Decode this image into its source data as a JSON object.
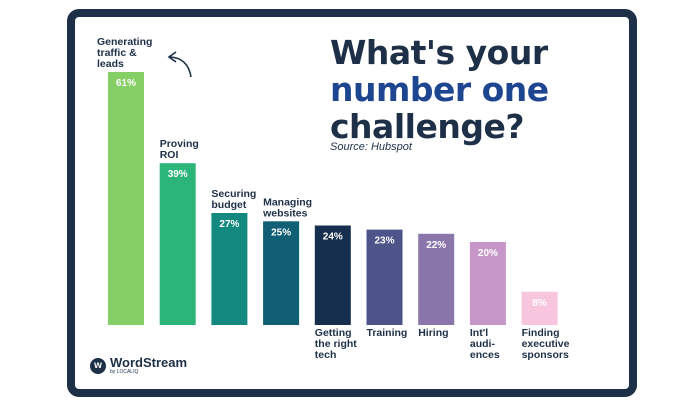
{
  "headline": {
    "line1": "What's your",
    "line2": "number one",
    "line3": "challenge?",
    "line1_color": "#1d3047",
    "line2_color": "#1e4590",
    "line3_color": "#1d3047"
  },
  "source": "Source: Hubspot",
  "brand": {
    "name": "WordStream",
    "sub": "by LOCALIQ",
    "icon": "wordstream-logo-icon"
  },
  "colors": {
    "frame": "#1d3047",
    "label_text": "#1d3047",
    "value_text": "#ffffff"
  },
  "chart_data": {
    "type": "bar",
    "title": "What's your number one challenge?",
    "categories": [
      "Generating traffic & leads",
      "Proving ROI",
      "Securing budget",
      "Managing websites",
      "Getting the right tech",
      "Training",
      "Hiring",
      "Int'l audi-ences",
      "Finding executive sponsors"
    ],
    "category_lines": [
      [
        "Generating",
        "traffic &",
        "leads"
      ],
      [
        "Proving",
        "ROI"
      ],
      [
        "Securing",
        "budget"
      ],
      [
        "Managing",
        "websites"
      ],
      [
        "Getting",
        "the right",
        "tech"
      ],
      [
        "Training"
      ],
      [
        "Hiring"
      ],
      [
        "Int'l",
        "audi-",
        "ences"
      ],
      [
        "Finding",
        "executive",
        "sponsors"
      ]
    ],
    "label_position": [
      "above",
      "above",
      "above",
      "above",
      "below",
      "below",
      "below",
      "below",
      "below"
    ],
    "values": [
      61,
      39,
      27,
      25,
      24,
      23,
      22,
      20,
      8
    ],
    "value_labels": [
      "61%",
      "39%",
      "27%",
      "25%",
      "24%",
      "23%",
      "22%",
      "20%",
      "8%"
    ],
    "bar_colors": [
      "#86cf67",
      "#2cb57a",
      "#13897f",
      "#115f74",
      "#172f4e",
      "#4d5489",
      "#8a76ab",
      "#c796c9",
      "#f7c5dd"
    ],
    "value_label_colors": [
      "#ffffff",
      "#ffffff",
      "#ffffff",
      "#ffffff",
      "#ffffff",
      "#ffffff",
      "#ffffff",
      "#ffffff",
      "#ffffff"
    ],
    "ylim": [
      0,
      61
    ],
    "grid": false,
    "legend": "none",
    "annotation": "curved arrow pointing to top bar label"
  }
}
